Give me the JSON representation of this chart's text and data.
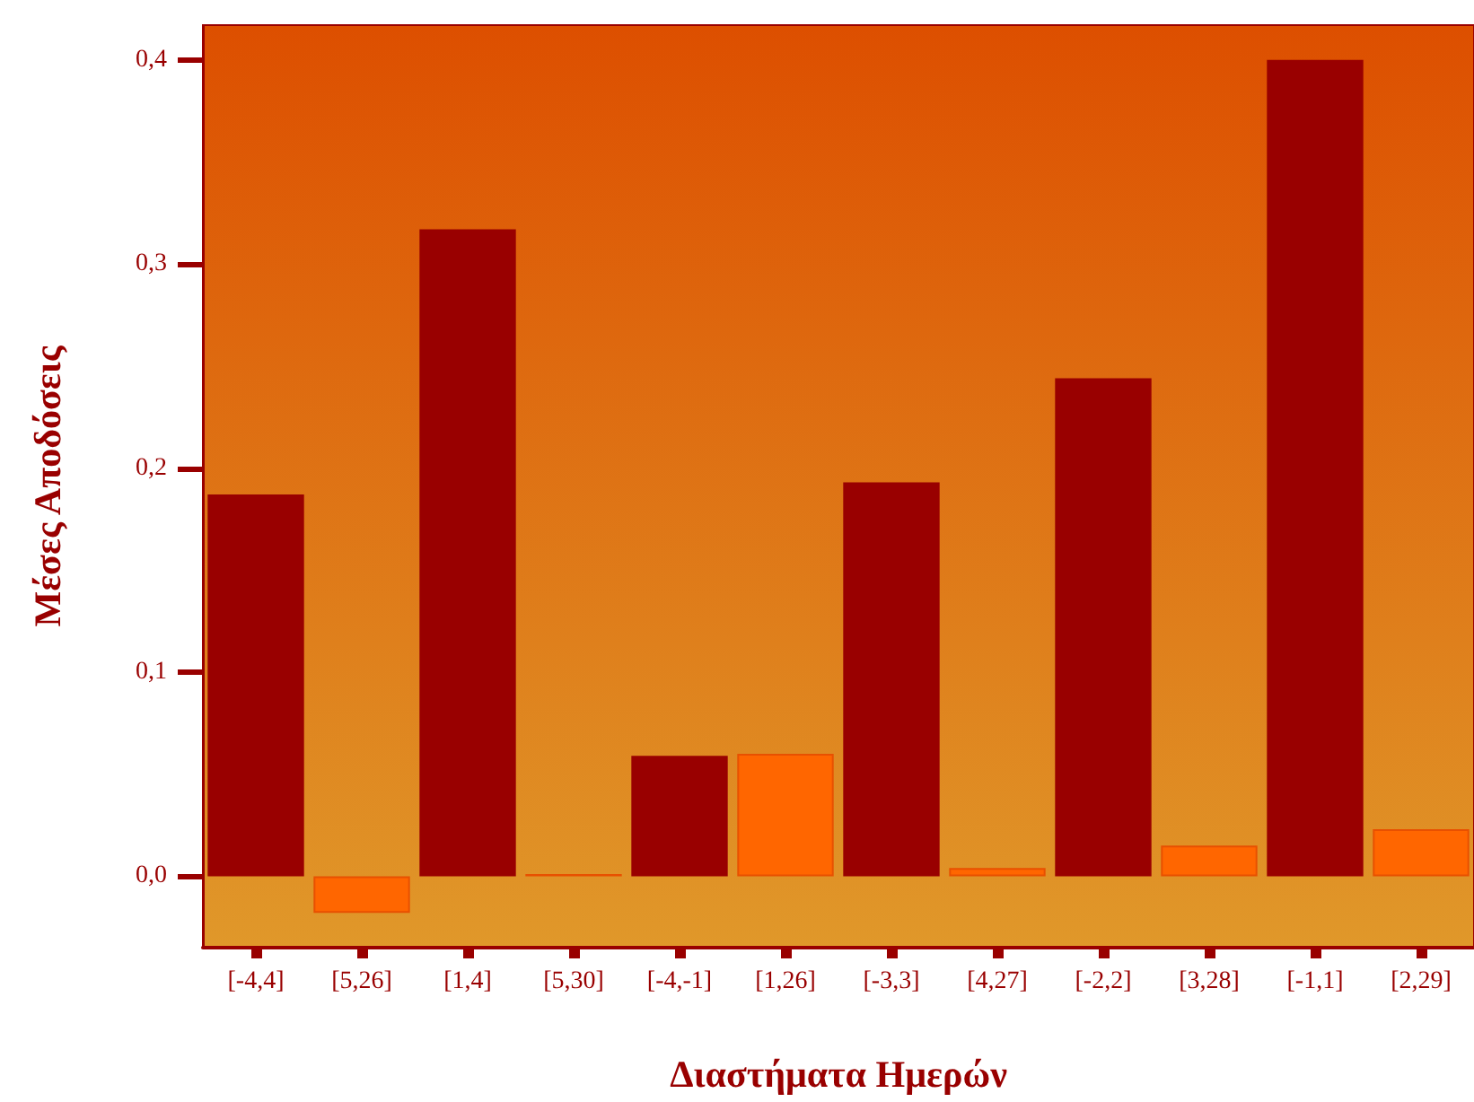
{
  "chart_data": {
    "type": "bar",
    "xlabel": "Διαστήματα Ημερών",
    "ylabel": "Μέσες Αποδόσεις",
    "categories": [
      "[-4,4]",
      "[5,26]",
      "[1,4]",
      "[5,30]",
      "[-4,-1]",
      "[1,26]",
      "[-3,3]",
      "[4,27]",
      "[-2,2]",
      "[3,28]",
      "[-1,1]",
      "[2,29]"
    ],
    "values": [
      0.187,
      -0.018,
      0.317,
      0.001,
      0.059,
      0.06,
      0.193,
      0.004,
      0.244,
      0.015,
      0.4,
      0.023
    ],
    "colors": [
      "#990000",
      "#ff6600",
      "#990000",
      "#ff6600",
      "#990000",
      "#ff6600",
      "#990000",
      "#ff6600",
      "#990000",
      "#ff6600",
      "#990000",
      "#ff6600"
    ],
    "ylim": [
      -0.035,
      0.417
    ],
    "yticks": [
      {
        "value": 0,
        "label": "0,0"
      },
      {
        "value": 0.1,
        "label": "0,1"
      },
      {
        "value": 0.2,
        "label": "0,2"
      },
      {
        "value": 0.3,
        "label": "0,3"
      },
      {
        "value": 0.4,
        "label": "0,4"
      }
    ],
    "grid": false
  }
}
